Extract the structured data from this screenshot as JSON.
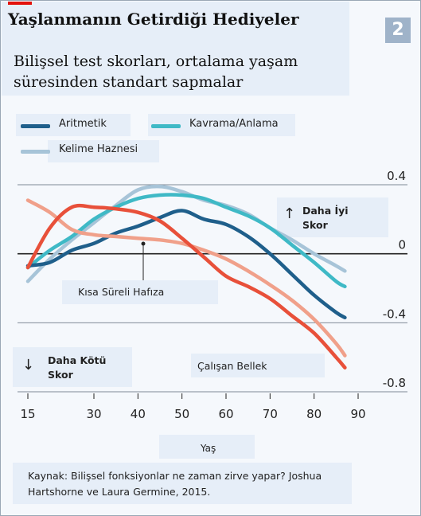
{
  "title": "Yaşlanmanın Getirdiği Hediyeler",
  "badge": "2",
  "subtitle_line1": "Bilişsel test skorları, ortalama yaşam",
  "subtitle_line2": "süresinden standart sapmalar",
  "annotations": {
    "better": "Daha İyi",
    "better_2": "Skor",
    "worse": "Daha Kötü",
    "worse_2": "Skor",
    "short_term": "Kısa Süreli Hafıza",
    "working": "Çalışan Bellek",
    "up_arrow": "↑",
    "down_arrow": "↓"
  },
  "source_line1": "Kaynak: Bilişsel fonksiyonlar ne zaman zirve yapar? Joshua",
  "source_line2": "Hartshorne ve Laura Germine, 2015.",
  "colors": {
    "aritmetik": "#1f5f8b",
    "kavrama": "#3fb9c6",
    "kelime": "#a7c4d8",
    "kisa": "#f0a08a",
    "calisan": "#e8503a"
  },
  "chart_data": {
    "type": "line",
    "title": "Yaşlanmanın Getirdiği Hediyeler",
    "subtitle": "Bilişsel test skorları, ortalama yaşam süresinden standart sapmalar",
    "xlabel": "Yaş",
    "ylabel": "",
    "xlim": [
      13,
      92
    ],
    "ylim": [
      -0.8,
      0.4
    ],
    "x_ticks": [
      15,
      30,
      40,
      50,
      60,
      70,
      80,
      90
    ],
    "y_ticks": [
      0.4,
      0,
      -0.4,
      -0.8
    ],
    "y_tick_labels": [
      "0.4",
      "0",
      "-0.4",
      "-0.8"
    ],
    "grid": "horizontal",
    "legend_position": "top",
    "series": [
      {
        "name": "Kelime Haznesi",
        "color": "#a7c4d8",
        "points": [
          [
            15,
            -0.16
          ],
          [
            20,
            -0.03
          ],
          [
            25,
            0.08
          ],
          [
            30,
            0.18
          ],
          [
            35,
            0.28
          ],
          [
            40,
            0.37
          ],
          [
            45,
            0.39
          ],
          [
            50,
            0.36
          ],
          [
            55,
            0.31
          ],
          [
            60,
            0.28
          ],
          [
            65,
            0.23
          ],
          [
            70,
            0.15
          ],
          [
            75,
            0.08
          ],
          [
            80,
            0.0
          ],
          [
            85,
            -0.07
          ],
          [
            87,
            -0.1
          ]
        ]
      },
      {
        "name": "Kavrama/Anlama",
        "color": "#3fb9c6",
        "points": [
          [
            15,
            -0.08
          ],
          [
            20,
            0.02
          ],
          [
            25,
            0.1
          ],
          [
            30,
            0.2
          ],
          [
            35,
            0.27
          ],
          [
            40,
            0.32
          ],
          [
            45,
            0.34
          ],
          [
            50,
            0.34
          ],
          [
            55,
            0.32
          ],
          [
            60,
            0.27
          ],
          [
            65,
            0.22
          ],
          [
            70,
            0.15
          ],
          [
            75,
            0.05
          ],
          [
            80,
            -0.05
          ],
          [
            85,
            -0.16
          ],
          [
            87,
            -0.19
          ]
        ]
      },
      {
        "name": "Aritmetik",
        "color": "#1f5f8b",
        "points": [
          [
            15,
            -0.07
          ],
          [
            20,
            -0.05
          ],
          [
            25,
            0.02
          ],
          [
            30,
            0.06
          ],
          [
            35,
            0.12
          ],
          [
            40,
            0.16
          ],
          [
            45,
            0.21
          ],
          [
            50,
            0.25
          ],
          [
            55,
            0.2
          ],
          [
            60,
            0.17
          ],
          [
            65,
            0.1
          ],
          [
            70,
            0.0
          ],
          [
            75,
            -0.12
          ],
          [
            80,
            -0.24
          ],
          [
            85,
            -0.34
          ],
          [
            87,
            -0.37
          ]
        ]
      },
      {
        "name": "Kısa Süreli Hafıza",
        "color": "#f0a08a",
        "points": [
          [
            15,
            0.31
          ],
          [
            20,
            0.24
          ],
          [
            25,
            0.14
          ],
          [
            30,
            0.11
          ],
          [
            35,
            0.1
          ],
          [
            40,
            0.09
          ],
          [
            45,
            0.08
          ],
          [
            50,
            0.06
          ],
          [
            55,
            0.02
          ],
          [
            60,
            -0.03
          ],
          [
            65,
            -0.1
          ],
          [
            70,
            -0.18
          ],
          [
            75,
            -0.27
          ],
          [
            80,
            -0.38
          ],
          [
            85,
            -0.52
          ],
          [
            87,
            -0.59
          ]
        ]
      },
      {
        "name": "Çalışan Bellek",
        "color": "#e8503a",
        "points": [
          [
            15,
            -0.08
          ],
          [
            20,
            0.15
          ],
          [
            25,
            0.27
          ],
          [
            30,
            0.27
          ],
          [
            35,
            0.26
          ],
          [
            40,
            0.24
          ],
          [
            45,
            0.19
          ],
          [
            50,
            0.09
          ],
          [
            55,
            -0.02
          ],
          [
            60,
            -0.13
          ],
          [
            65,
            -0.19
          ],
          [
            70,
            -0.26
          ],
          [
            75,
            -0.36
          ],
          [
            80,
            -0.46
          ],
          [
            85,
            -0.6
          ],
          [
            87,
            -0.66
          ]
        ]
      }
    ]
  },
  "legend": [
    {
      "name": "Aritmetik",
      "color": "#1f5f8b"
    },
    {
      "name": "Kavrama/Anlama",
      "color": "#3fb9c6"
    },
    {
      "name": "Kelime Haznesi",
      "color": "#a7c4d8"
    }
  ]
}
